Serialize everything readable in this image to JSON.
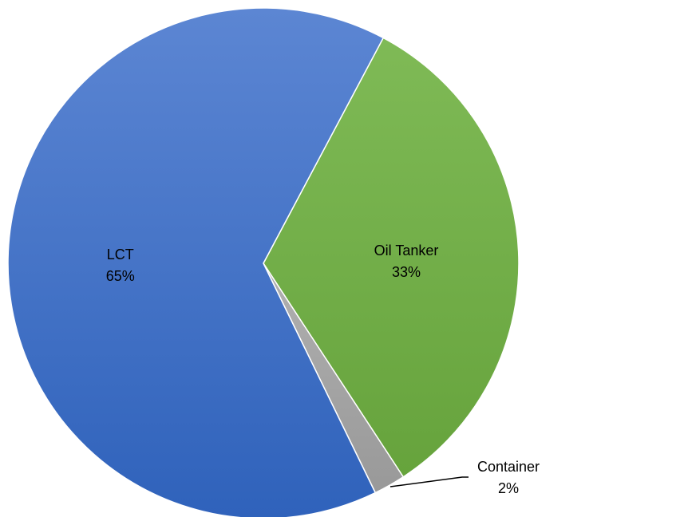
{
  "chart_data": {
    "type": "pie",
    "slices": [
      {
        "label": "Oil Tanker",
        "value": 33,
        "display": "33%",
        "color": "#70ad47"
      },
      {
        "label": "Container",
        "value": 2,
        "display": "2%",
        "color": "#a5a5a5"
      },
      {
        "label": "LCT",
        "value": 65,
        "display": "65%",
        "color": "#4472c4"
      }
    ],
    "start_angle_deg": -62,
    "direction": "clockwise",
    "legend": "none",
    "data_labels": "category name and percentage"
  }
}
